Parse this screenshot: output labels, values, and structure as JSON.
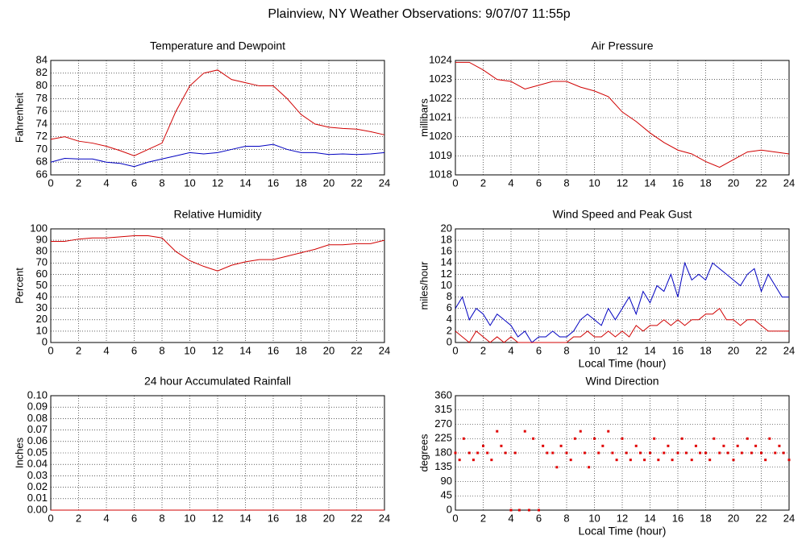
{
  "title": "Plainview, NY Weather Observations: 9/07/07 11:55p",
  "chart_data": [
    {
      "type": "line",
      "title": "Temperature and Dewpoint",
      "ylabel": "Fahrenheit",
      "xlim": [
        0,
        24
      ],
      "xticks": [
        0,
        2,
        4,
        6,
        8,
        10,
        12,
        14,
        16,
        18,
        20,
        22,
        24
      ],
      "ylim": [
        66,
        84
      ],
      "yticks": [
        66,
        68,
        70,
        72,
        74,
        76,
        78,
        80,
        82,
        84
      ],
      "grid": true,
      "x": [
        0,
        1,
        2,
        3,
        4,
        5,
        6,
        7,
        8,
        9,
        10,
        11,
        12,
        13,
        14,
        15,
        16,
        17,
        18,
        19,
        20,
        21,
        22,
        23,
        24
      ],
      "series": [
        {
          "color": "#d00000",
          "values": [
            71.6,
            72,
            71.3,
            71,
            70.5,
            69.8,
            69,
            70,
            71,
            76,
            80,
            82,
            82.5,
            81,
            80.5,
            80,
            80,
            78,
            75.5,
            74,
            73.5,
            73.3,
            73.2,
            72.8,
            72.3
          ]
        },
        {
          "color": "#0000c0",
          "values": [
            68,
            68.6,
            68.5,
            68.5,
            68,
            67.8,
            67.3,
            68,
            68.5,
            69,
            69.5,
            69.3,
            69.5,
            70,
            70.5,
            70.5,
            70.8,
            70,
            69.5,
            69.5,
            69.2,
            69.3,
            69.2,
            69.3,
            69.5
          ]
        }
      ]
    },
    {
      "type": "line",
      "title": "Air Pressure",
      "ylabel": "millibars",
      "xlim": [
        0,
        24
      ],
      "xticks": [
        0,
        2,
        4,
        6,
        8,
        10,
        12,
        14,
        16,
        18,
        20,
        22,
        24
      ],
      "ylim": [
        1018,
        1024
      ],
      "yticks": [
        1018,
        1019,
        1020,
        1021,
        1022,
        1023,
        1024
      ],
      "grid": true,
      "x": [
        0,
        1,
        2,
        3,
        4,
        5,
        6,
        7,
        8,
        9,
        10,
        11,
        12,
        13,
        14,
        15,
        16,
        17,
        18,
        19,
        20,
        21,
        22,
        23,
        24
      ],
      "series": [
        {
          "color": "#d00000",
          "values": [
            1023.9,
            1023.9,
            1023.5,
            1023,
            1022.9,
            1022.5,
            1022.7,
            1022.9,
            1022.9,
            1022.6,
            1022.4,
            1022.1,
            1021.3,
            1020.8,
            1020.2,
            1019.7,
            1019.3,
            1019.1,
            1018.7,
            1018.4,
            1018.8,
            1019.2,
            1019.3,
            1019.2,
            1019.1
          ]
        }
      ]
    },
    {
      "type": "line",
      "title": "Relative Humidity",
      "ylabel": "Percent",
      "xlim": [
        0,
        24
      ],
      "xticks": [
        0,
        2,
        4,
        6,
        8,
        10,
        12,
        14,
        16,
        18,
        20,
        22,
        24
      ],
      "ylim": [
        0,
        100
      ],
      "yticks": [
        0,
        10,
        20,
        30,
        40,
        50,
        60,
        70,
        80,
        90,
        100
      ],
      "grid": true,
      "x": [
        0,
        1,
        2,
        3,
        4,
        5,
        6,
        7,
        8,
        9,
        10,
        11,
        12,
        13,
        14,
        15,
        16,
        17,
        18,
        19,
        20,
        21,
        22,
        23,
        24
      ],
      "series": [
        {
          "color": "#d00000",
          "values": [
            89,
            89,
            91,
            92,
            92,
            93,
            94,
            94,
            92,
            80,
            72,
            67,
            63,
            68,
            71,
            73,
            73,
            76,
            79,
            82,
            86,
            86,
            87,
            87,
            90
          ]
        }
      ]
    },
    {
      "type": "line",
      "title": "Wind Speed and Peak Gust",
      "ylabel": "miles/hour",
      "xlabel": "Local Time (hour)",
      "xlim": [
        0,
        24
      ],
      "xticks": [
        0,
        2,
        4,
        6,
        8,
        10,
        12,
        14,
        16,
        18,
        20,
        22,
        24
      ],
      "ylim": [
        0,
        20
      ],
      "yticks": [
        0,
        2,
        4,
        6,
        8,
        10,
        12,
        14,
        16,
        18,
        20
      ],
      "grid": true,
      "x": [
        0,
        0.5,
        1,
        1.5,
        2,
        2.5,
        3,
        3.5,
        4,
        4.5,
        5,
        5.5,
        6,
        6.5,
        7,
        7.5,
        8,
        8.5,
        9,
        9.5,
        10,
        10.5,
        11,
        11.5,
        12,
        12.5,
        13,
        13.5,
        14,
        14.5,
        15,
        15.5,
        16,
        16.5,
        17,
        17.5,
        18,
        18.5,
        19,
        19.5,
        20,
        20.5,
        21,
        21.5,
        22,
        22.5,
        23,
        23.5,
        24
      ],
      "series": [
        {
          "color": "#0000c0",
          "values": [
            6,
            8,
            4,
            6,
            5,
            3,
            5,
            4,
            3,
            1,
            2,
            0,
            1,
            1,
            2,
            1,
            1,
            2,
            4,
            5,
            4,
            3,
            6,
            4,
            6,
            8,
            5,
            9,
            7,
            10,
            9,
            12,
            8,
            14,
            11,
            12,
            11,
            14,
            13,
            12,
            11,
            10,
            12,
            13,
            9,
            12,
            10,
            8,
            8
          ]
        },
        {
          "color": "#d00000",
          "values": [
            2,
            1,
            0,
            2,
            1,
            0,
            1,
            0,
            1,
            0,
            0,
            0,
            0,
            0,
            0,
            0,
            0,
            1,
            1,
            2,
            1,
            1,
            2,
            1,
            2,
            1,
            3,
            2,
            3,
            3,
            4,
            3,
            4,
            3,
            4,
            4,
            5,
            5,
            6,
            4,
            4,
            3,
            4,
            4,
            3,
            2,
            2,
            2,
            2
          ]
        }
      ]
    },
    {
      "type": "line",
      "title": "24 hour Accumulated Rainfall",
      "ylabel": "Inches",
      "xlim": [
        0,
        24
      ],
      "xticks": [
        0,
        2,
        4,
        6,
        8,
        10,
        12,
        14,
        16,
        18,
        20,
        22,
        24
      ],
      "ylim": [
        0,
        0.1
      ],
      "yticks": [
        {
          "value": 0,
          "label": "0.00"
        },
        {
          "value": 0.01,
          "label": "0.01"
        },
        {
          "value": 0.02,
          "label": "0.02"
        },
        {
          "value": 0.03,
          "label": "0.03"
        },
        {
          "value": 0.04,
          "label": "0.04"
        },
        {
          "value": 0.05,
          "label": "0.05"
        },
        {
          "value": 0.06,
          "label": "0.06"
        },
        {
          "value": 0.07,
          "label": "0.07"
        },
        {
          "value": 0.08,
          "label": "0.08"
        },
        {
          "value": 0.09,
          "label": "0.09"
        },
        {
          "value": 0.1,
          "label": "0.10"
        }
      ],
      "grid": true,
      "x": [
        0,
        24
      ],
      "series": [
        {
          "color": "#d00000",
          "values": [
            0,
            0
          ]
        }
      ]
    },
    {
      "type": "scatter",
      "title": "Wind Direction",
      "ylabel": "degrees",
      "xlabel": "Local Time (hour)",
      "xlim": [
        0,
        24
      ],
      "xticks": [
        0,
        2,
        4,
        6,
        8,
        10,
        12,
        14,
        16,
        18,
        20,
        22,
        24
      ],
      "ylim": [
        0,
        360
      ],
      "yticks": [
        0,
        45,
        90,
        135,
        180,
        225,
        270,
        315,
        360
      ],
      "grid": true,
      "x": [
        0,
        0.3,
        0.6,
        1,
        1.3,
        1.6,
        2,
        2.3,
        2.6,
        3,
        3.3,
        3.6,
        4,
        4.3,
        4.6,
        5,
        5.3,
        5.6,
        6,
        6.3,
        6.6,
        7,
        7.3,
        7.6,
        8,
        8.3,
        8.6,
        9,
        9.3,
        9.6,
        10,
        10.3,
        10.6,
        11,
        11.3,
        11.6,
        12,
        12.3,
        12.6,
        13,
        13.3,
        13.6,
        14,
        14.3,
        14.6,
        15,
        15.3,
        15.6,
        16,
        16.3,
        16.6,
        17,
        17.3,
        17.6,
        18,
        18.3,
        18.6,
        19,
        19.3,
        19.6,
        20,
        20.3,
        20.6,
        21,
        21.3,
        21.6,
        22,
        22.3,
        22.6,
        23,
        23.3,
        23.6,
        24
      ],
      "series": [
        {
          "color": "#e00000",
          "values": [
            180,
            158,
            225,
            180,
            158,
            180,
            202,
            180,
            158,
            248,
            202,
            180,
            0,
            180,
            0,
            248,
            0,
            225,
            0,
            202,
            180,
            180,
            135,
            202,
            180,
            158,
            225,
            248,
            180,
            135,
            225,
            180,
            202,
            248,
            180,
            158,
            225,
            180,
            158,
            202,
            180,
            158,
            180,
            225,
            158,
            180,
            202,
            158,
            180,
            225,
            180,
            158,
            202,
            180,
            180,
            158,
            225,
            180,
            202,
            180,
            158,
            202,
            180,
            225,
            180,
            202,
            180,
            158,
            225,
            180,
            202,
            180,
            158
          ]
        }
      ]
    }
  ]
}
